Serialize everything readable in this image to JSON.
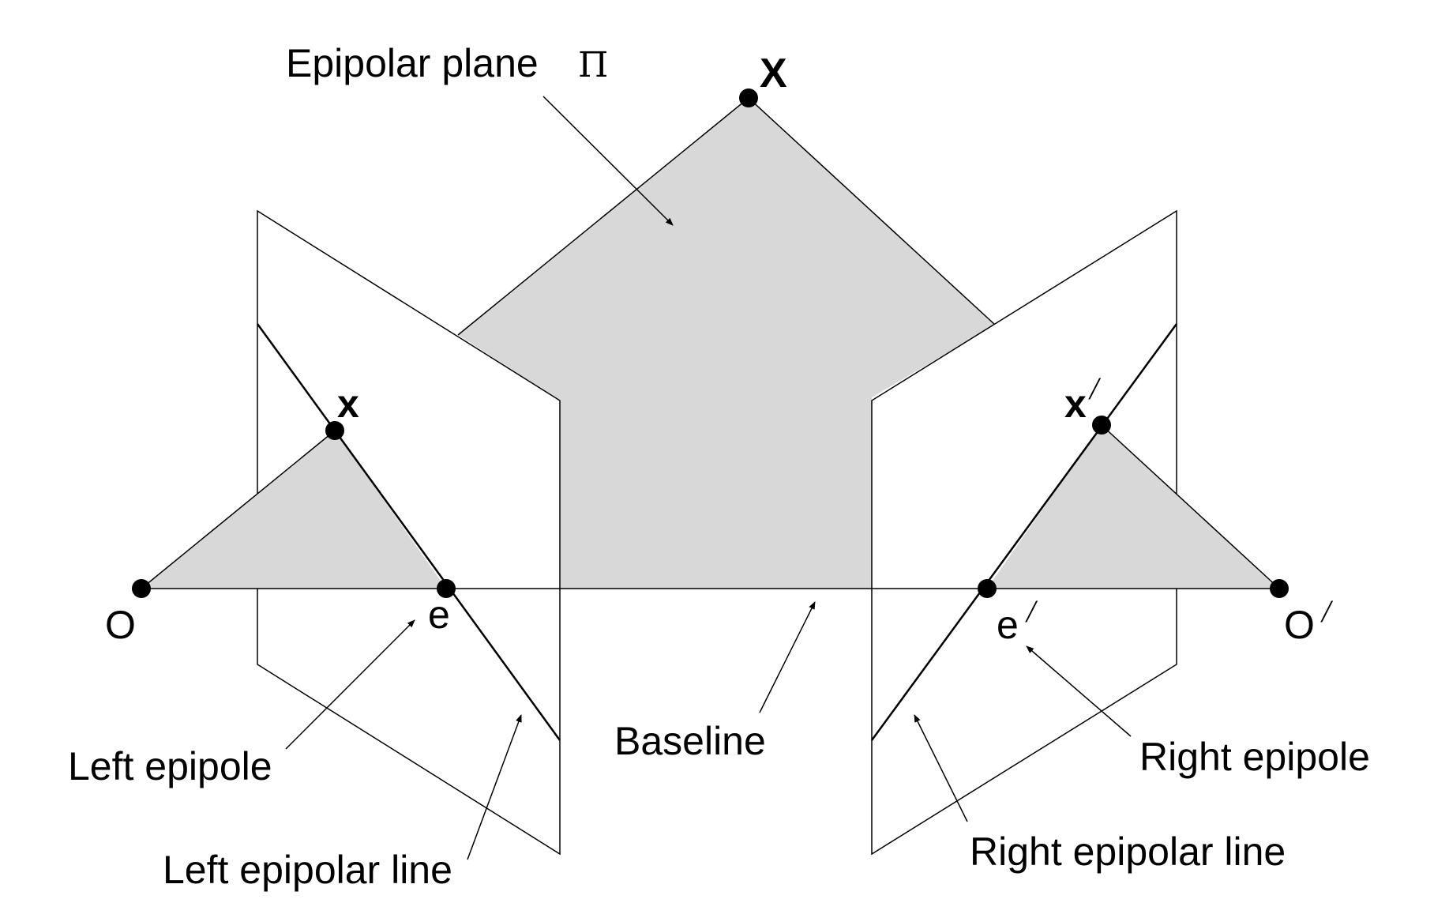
{
  "labels": {
    "epipolar_plane": "Epipolar plane",
    "pi_symbol": "Π",
    "point_X": "X",
    "point_x": "x",
    "point_x_prime": "x",
    "left_camera": "O",
    "right_camera": "O",
    "left_epipole_point": "e",
    "right_epipole_point": "e",
    "prime_mark": "/",
    "baseline": "Baseline",
    "left_epipole": "Left epipole",
    "right_epipole": "Right epipole",
    "left_epipolar_line": "Left epipolar line",
    "right_epipolar_line": "Right epipolar line"
  },
  "colors": {
    "fill": "#d8d8d8",
    "stroke": "#000000",
    "background": "#ffffff"
  }
}
